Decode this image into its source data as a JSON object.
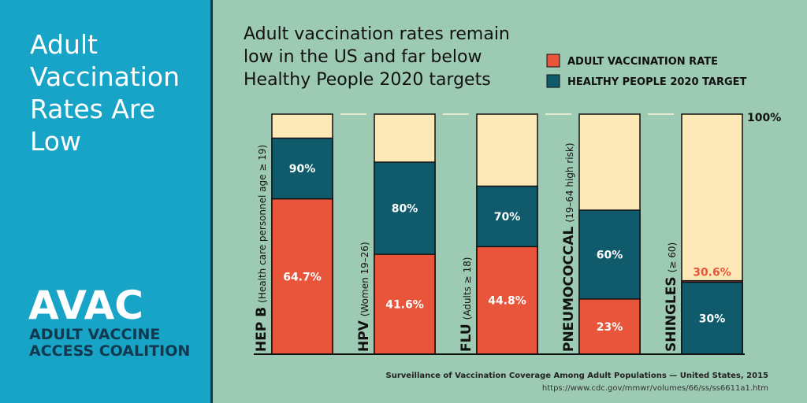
{
  "sidebar": {
    "title": [
      "Adult",
      "Vaccination",
      "Rates Are",
      "Low"
    ],
    "logo": "AVAC",
    "org": [
      "ADULT VACCINE",
      "ACCESS COALITION"
    ]
  },
  "chart_data": {
    "type": "bar",
    "title": [
      "Adult vaccination rates remain",
      "low in the US and far below",
      "Healthy People 2020 targets"
    ],
    "categories": [
      "HEP B",
      "HPV",
      "FLU",
      "PNEUMOCOCCAL",
      "SHINGLES"
    ],
    "category_notes": [
      "(Health care personnel age ≥ 19)",
      "(Women 19–26)",
      "(Adults ≥ 18)",
      "(19–64 high risk)",
      "(≥ 60)"
    ],
    "series": [
      {
        "name": "ADULT VACCINATION RATE",
        "color": "#e8553a",
        "values": [
          64.7,
          41.6,
          44.8,
          23,
          30.6
        ],
        "value_labels": [
          "64.7%",
          "41.6%",
          "44.8%",
          "23%",
          "30.6%"
        ]
      },
      {
        "name": "HEALTHY PEOPLE 2020 TARGET",
        "color": "#0f5a6b",
        "values": [
          90,
          80,
          70,
          60,
          30
        ],
        "value_labels": [
          "90%",
          "80%",
          "70%",
          "60%",
          "30%"
        ]
      }
    ],
    "background_color": "#fde9b7",
    "ylim": [
      0,
      100
    ],
    "yticks": [
      {
        "value": 100,
        "label": "100%"
      }
    ],
    "source": "Surveillance of Vaccination Coverage Among Adult Populations — United States, 2015",
    "source_url": "https://www.cdc.gov/mmwr/volumes/66/ss/ss6611a1.htm"
  }
}
